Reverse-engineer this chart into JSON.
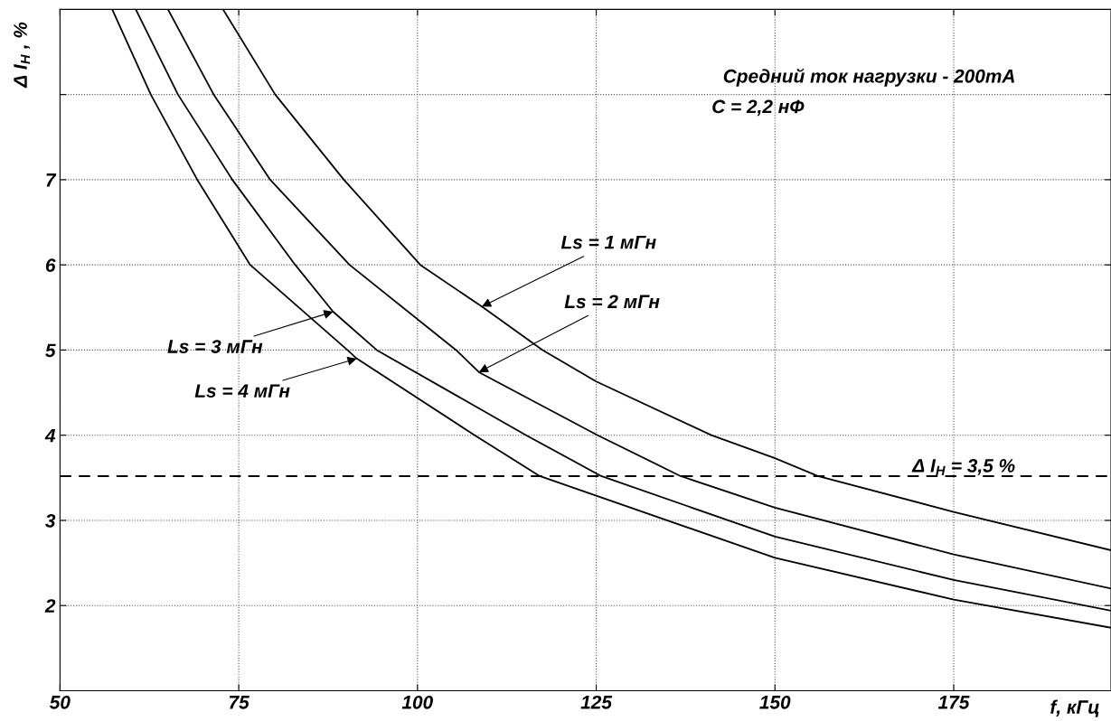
{
  "chart_data": {
    "type": "line",
    "xlabel": "f, кГц",
    "ylabel": "Δ I$_{Н}$ , %",
    "xlim": [
      50,
      197
    ],
    "ylim": [
      1,
      9
    ],
    "xticks": [
      50,
      75,
      100,
      125,
      150,
      175
    ],
    "yticks": [
      2,
      3,
      4,
      5,
      6,
      7,
      {
        "value": 8,
        "label": null
      }
    ],
    "grid": true,
    "line_style": "solid",
    "marker": "none",
    "series": [
      {
        "color": "#000000",
        "x": [
          72.8,
          80.1,
          89.7,
          100.4,
          109,
          117.5,
          125,
          141.1,
          150,
          156,
          175,
          197
        ],
        "values": [
          9,
          8,
          7,
          6,
          5.51,
          5,
          4.63,
          4,
          3.73,
          3.52,
          3.1,
          2.65
        ]
      },
      {
        "color": "#000000",
        "x": [
          65.1,
          71.5,
          79.4,
          90.5,
          105.4,
          108.6,
          125.2,
          136.8,
          150,
          175,
          197
        ],
        "values": [
          9,
          8,
          7,
          6,
          5,
          4.74,
          4,
          3.52,
          3.15,
          2.6,
          2.2
        ]
      },
      {
        "color": "#000000",
        "x": [
          60.6,
          66.5,
          74.1,
          82.9,
          88.2,
          94.3,
          115.2,
          125.7,
          150,
          175,
          197
        ],
        "values": [
          9,
          8,
          7,
          6,
          5.45,
          5,
          4,
          3.52,
          2.81,
          2.3,
          1.94
        ]
      },
      {
        "color": "#000000",
        "x": [
          57.3,
          62.7,
          69.2,
          76.6,
          90.2,
          91.5,
          108,
          117.1,
          150,
          175,
          197
        ],
        "values": [
          9,
          8,
          7,
          6,
          5,
          4.9,
          4,
          3.52,
          2.56,
          2.07,
          1.74
        ]
      }
    ],
    "ref_lines": [
      {
        "axis": "y",
        "value": 3.52,
        "label": "Δ I$_{Н}$ = 3,5 %",
        "color": "#000000",
        "line_style": "dashed"
      }
    ],
    "annotations": [
      {
        "text": "Ls = 1 мГн",
        "x": 109,
        "y": 5.51
      },
      {
        "text": "Ls = 2 мГн",
        "x": 108.6,
        "y": 4.74
      },
      {
        "text": "Ls = 3 мГн",
        "x": 88.2,
        "y": 5.45
      },
      {
        "text": "Ls = 4 мГн",
        "x": 91.5,
        "y": 4.9
      },
      "Средний ток нагрузки - 200mA",
      "С = 2,2 нФ"
    ]
  }
}
